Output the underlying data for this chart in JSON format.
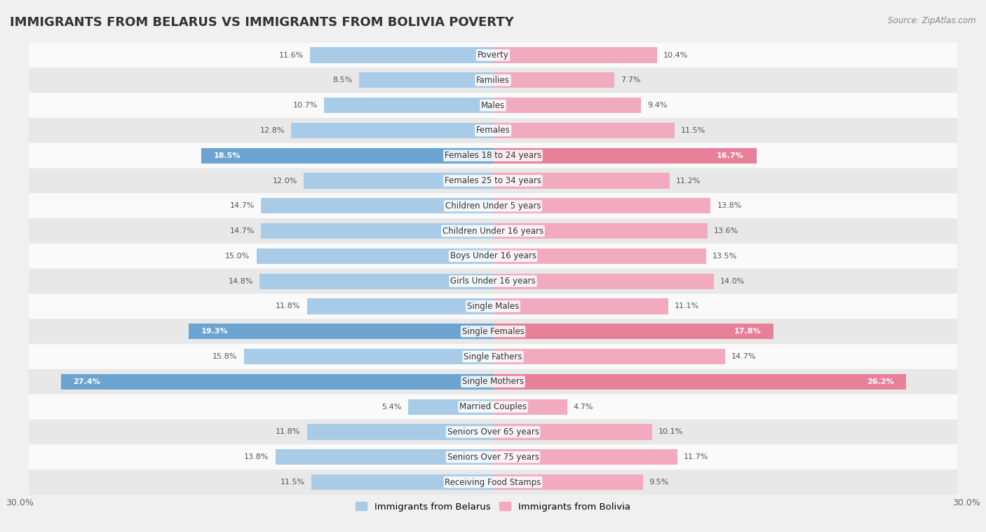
{
  "title": "IMMIGRANTS FROM BELARUS VS IMMIGRANTS FROM BOLIVIA POVERTY",
  "source": "Source: ZipAtlas.com",
  "categories": [
    "Poverty",
    "Families",
    "Males",
    "Females",
    "Females 18 to 24 years",
    "Females 25 to 34 years",
    "Children Under 5 years",
    "Children Under 16 years",
    "Boys Under 16 years",
    "Girls Under 16 years",
    "Single Males",
    "Single Females",
    "Single Fathers",
    "Single Mothers",
    "Married Couples",
    "Seniors Over 65 years",
    "Seniors Over 75 years",
    "Receiving Food Stamps"
  ],
  "belarus_values": [
    11.6,
    8.5,
    10.7,
    12.8,
    18.5,
    12.0,
    14.7,
    14.7,
    15.0,
    14.8,
    11.8,
    19.3,
    15.8,
    27.4,
    5.4,
    11.8,
    13.8,
    11.5
  ],
  "bolivia_values": [
    10.4,
    7.7,
    9.4,
    11.5,
    16.7,
    11.2,
    13.8,
    13.6,
    13.5,
    14.0,
    11.1,
    17.8,
    14.7,
    26.2,
    4.7,
    10.1,
    11.7,
    9.5
  ],
  "belarus_color": "#A8CCE8",
  "bolivia_color": "#F2AABF",
  "highlight_indices": [
    4,
    11,
    13
  ],
  "highlight_belarus_color": "#6BA4D0",
  "highlight_bolivia_color": "#E8809A",
  "background_color": "#f0f0f0",
  "row_light_color": "#fafafa",
  "row_dark_color": "#e8e8e8",
  "xlim": 30.0,
  "legend_belarus": "Immigrants from Belarus",
  "legend_bolivia": "Immigrants from Bolivia",
  "title_fontsize": 13,
  "label_fontsize": 8.5,
  "value_fontsize": 8.0,
  "bar_height": 0.62
}
